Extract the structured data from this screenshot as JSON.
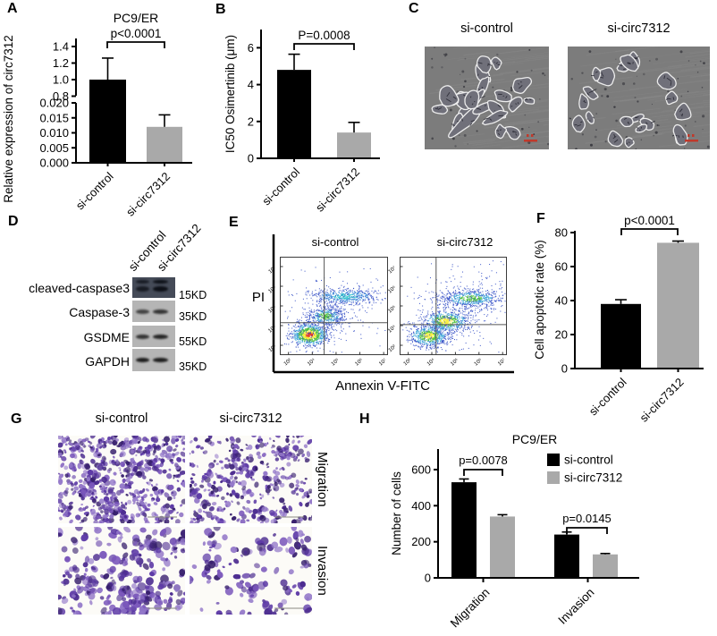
{
  "figure": {
    "background": "#ffffff",
    "accent_black": "#000000",
    "accent_gray": "#a9a9a9"
  },
  "panels": {
    "A": {
      "letter": "A"
    },
    "B": {
      "letter": "B"
    },
    "C": {
      "letter": "C",
      "labels": [
        "si-control",
        "si-circ7312"
      ],
      "style": {
        "bg": "#7c7c7c",
        "scale_mark_color": "#c0392b"
      },
      "images": [
        {
          "seed": 3,
          "cells": 14,
          "chain": true
        },
        {
          "seed": 9,
          "cells": 20,
          "chain": false
        }
      ]
    },
    "D": {
      "letter": "D",
      "lane_labels": [
        "si-control",
        "si-circ7312"
      ],
      "rows": [
        {
          "protein": "cleaved-caspase3",
          "kd": "15KD",
          "dark": true,
          "doublet": true,
          "band_strength": [
            0.8,
            1.0
          ]
        },
        {
          "protein": "Caspase-3",
          "kd": "35KD",
          "dark": false,
          "doublet": false,
          "band_strength": [
            0.75,
            0.85
          ]
        },
        {
          "protein": "GSDME",
          "kd": "55KD",
          "dark": false,
          "doublet": false,
          "band_strength": [
            0.85,
            0.95
          ]
        },
        {
          "protein": "GAPDH",
          "kd": "35KD",
          "dark": false,
          "doublet": false,
          "band_strength": [
            1.0,
            1.0
          ]
        }
      ]
    },
    "E": {
      "letter": "E"
    },
    "F": {
      "letter": "F"
    },
    "G": {
      "letter": "G",
      "col_labels": [
        "si-control",
        "si-circ7312"
      ],
      "row_labels": [
        "Migration",
        "Invasion"
      ],
      "images": [
        {
          "seed": 5,
          "dots": 650,
          "big": false
        },
        {
          "seed": 6,
          "dots": 400,
          "big": false
        },
        {
          "seed": 7,
          "dots": 290,
          "big": true
        },
        {
          "seed": 8,
          "dots": 140,
          "big": true
        }
      ]
    },
    "H": {
      "letter": "H"
    }
  },
  "chart_data": [
    {
      "id": "A",
      "type": "bar",
      "axis_break": true,
      "title": "PC9/ER",
      "ylabel": "Relative expression of circ7312",
      "categories": [
        "si-control",
        "si-circ7312"
      ],
      "values": [
        1.0,
        0.012
      ],
      "errors_up": [
        0.26,
        0.004
      ],
      "bar_colors": [
        "#000000",
        "#a9a9a9"
      ],
      "significance": "p<0.0001",
      "upper_ticks": [
        0.8,
        1.0,
        1.2,
        1.4
      ],
      "upper_tick_labels": [
        "0.8",
        "1.0",
        "1.2",
        "1.4"
      ],
      "upper_range": [
        0.8,
        1.45
      ],
      "lower_ticks": [
        0.0,
        0.005,
        0.01,
        0.015,
        0.02
      ],
      "lower_tick_labels": [
        "0.000",
        "0.005",
        "0.010",
        "0.015",
        "0.020"
      ],
      "lower_range": [
        0,
        0.02
      ]
    },
    {
      "id": "B",
      "type": "bar",
      "ylabel": "IC50 Osimertinib (μm)",
      "categories": [
        "si-control",
        "si-circ7312"
      ],
      "values": [
        4.8,
        1.4
      ],
      "errors_up": [
        0.85,
        0.55
      ],
      "bar_colors": [
        "#000000",
        "#a9a9a9"
      ],
      "significance": "P=0.0008",
      "yticks": [
        0,
        2,
        4,
        6
      ],
      "ylim": [
        0,
        7
      ]
    },
    {
      "id": "E",
      "type": "flow_cytometry_scatter",
      "xlabel": "Annexin V-FITC",
      "ylabel": "PI",
      "plot_labels": [
        "si-control",
        "si-circ7312"
      ],
      "axis_tick_labels": [
        "10²",
        "10⁴",
        "10⁵",
        "10⁶",
        "10⁷"
      ],
      "plots": [
        {
          "label": "si-control",
          "seed": 11,
          "quad_x": 0.41,
          "quad_y": 0.67,
          "clusters": [
            {
              "cx": 0.27,
              "cy": 0.79,
              "sx": 0.08,
              "sy": 0.055,
              "n": 900,
              "hot": "red"
            },
            {
              "cx": 0.42,
              "cy": 0.6,
              "sx": 0.09,
              "sy": 0.05,
              "n": 400,
              "hot": "green"
            },
            {
              "cx": 0.6,
              "cy": 0.4,
              "sx": 0.16,
              "sy": 0.04,
              "n": 550,
              "hot": "cyan"
            },
            {
              "cx": 0.45,
              "cy": 0.62,
              "sx": 0.2,
              "sy": 0.12,
              "n": 260,
              "hot": "blue",
              "corr": 0.55
            },
            {
              "cx": 0.5,
              "cy": 0.55,
              "sx": 0.3,
              "sy": 0.27,
              "n": 150,
              "hot": "blue"
            }
          ]
        },
        {
          "label": "si-circ7312",
          "seed": 23,
          "quad_x": 0.34,
          "quad_y": 0.69,
          "clusters": [
            {
              "cx": 0.27,
              "cy": 0.8,
              "sx": 0.09,
              "sy": 0.055,
              "n": 650,
              "hot": "yellow"
            },
            {
              "cx": 0.43,
              "cy": 0.65,
              "sx": 0.11,
              "sy": 0.055,
              "n": 600,
              "hot": "yellow"
            },
            {
              "cx": 0.66,
              "cy": 0.42,
              "sx": 0.15,
              "sy": 0.045,
              "n": 600,
              "hot": "green"
            },
            {
              "cx": 0.5,
              "cy": 0.6,
              "sx": 0.24,
              "sy": 0.14,
              "n": 300,
              "hot": "blue",
              "corr": 0.6
            },
            {
              "cx": 0.55,
              "cy": 0.55,
              "sx": 0.3,
              "sy": 0.27,
              "n": 150,
              "hot": "blue"
            }
          ]
        }
      ]
    },
    {
      "id": "F",
      "type": "bar",
      "ylabel": "Cell apoptotic rate (%)",
      "categories": [
        "si-control",
        "si-circ7312"
      ],
      "values": [
        38,
        74
      ],
      "errors_up": [
        2.5,
        1
      ],
      "bar_colors": [
        "#000000",
        "#a9a9a9"
      ],
      "significance": "p<0.0001",
      "yticks": [
        0,
        20,
        40,
        60,
        80
      ],
      "ylim": [
        0,
        85
      ]
    },
    {
      "id": "H",
      "type": "grouped_bar",
      "title": "PC9/ER",
      "ylabel": "Number of cells",
      "categories": [
        "Migration",
        "Invasion"
      ],
      "series": [
        {
          "name": "si-control",
          "color": "#000000",
          "values": [
            530,
            240
          ],
          "errors_up": [
            18,
            14
          ]
        },
        {
          "name": "si-circ7312",
          "color": "#a9a9a9",
          "values": [
            340,
            130
          ],
          "errors_up": [
            10,
            5
          ]
        }
      ],
      "significances": [
        {
          "label": "p=0.0078",
          "category": "Migration"
        },
        {
          "label": "p=0.0145",
          "category": "Invasion"
        }
      ],
      "yticks": [
        0,
        200,
        400,
        600
      ],
      "ylim": [
        0,
        680
      ],
      "legend_position": "top-right"
    }
  ]
}
